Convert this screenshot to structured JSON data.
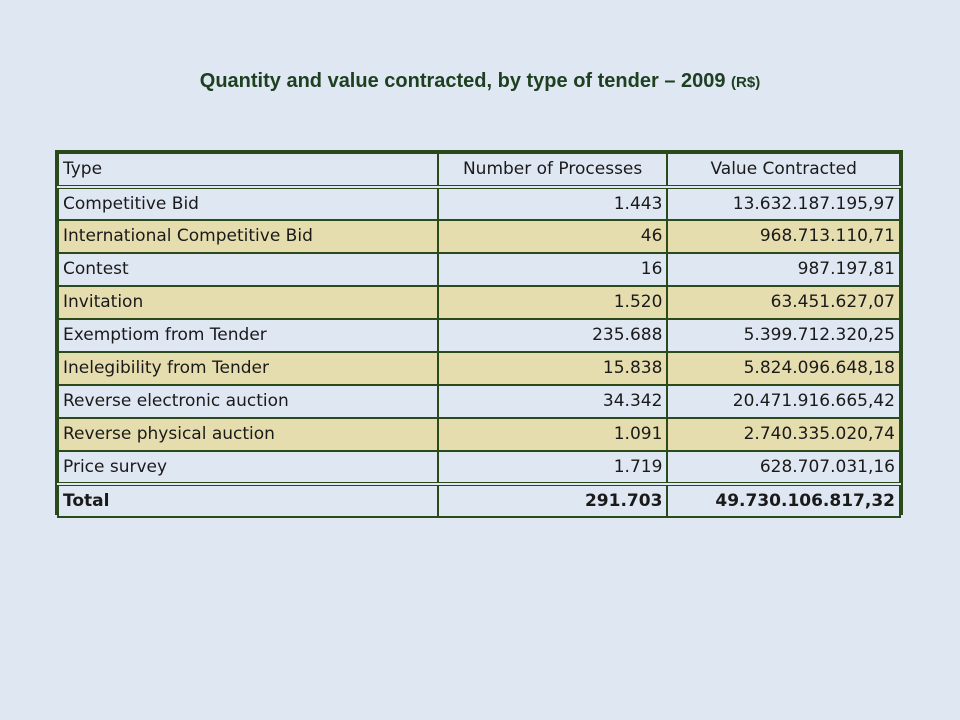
{
  "title": {
    "main": "Quantity and value contracted, by type of tender – 2009",
    "unit": "(R$)"
  },
  "table": {
    "headers": [
      "Type",
      "Number of Processes",
      "Value Contracted"
    ],
    "rows": [
      {
        "type": "Competitive Bid",
        "processes": "1.443",
        "value": "13.632.187.195,97"
      },
      {
        "type": "International Competitive Bid",
        "processes": "46",
        "value": "968.713.110,71"
      },
      {
        "type": "Contest",
        "processes": "16",
        "value": "987.197,81"
      },
      {
        "type": "Invitation",
        "processes": "1.520",
        "value": "63.451.627,07"
      },
      {
        "type": "Exemptiom from Tender",
        "processes": "235.688",
        "value": "5.399.712.320,25"
      },
      {
        "type": "Inelegibility from Tender",
        "processes": "15.838",
        "value": "5.824.096.648,18"
      },
      {
        "type": "Reverse electronic auction",
        "processes": "34.342",
        "value": "20.471.916.665,42"
      },
      {
        "type": "Reverse physical auction",
        "processes": "1.091",
        "value": "2.740.335.020,74"
      },
      {
        "type": "Price survey",
        "processes": "1.719",
        "value": "628.707.031,16"
      }
    ],
    "total": {
      "type": "Total",
      "processes": "291.703",
      "value": "49.730.106.817,32"
    }
  },
  "colors": {
    "background": "#dfe7f3",
    "row_alt": "#e6ddaf",
    "border": "#2a4a1c",
    "title": "#1e4020"
  }
}
